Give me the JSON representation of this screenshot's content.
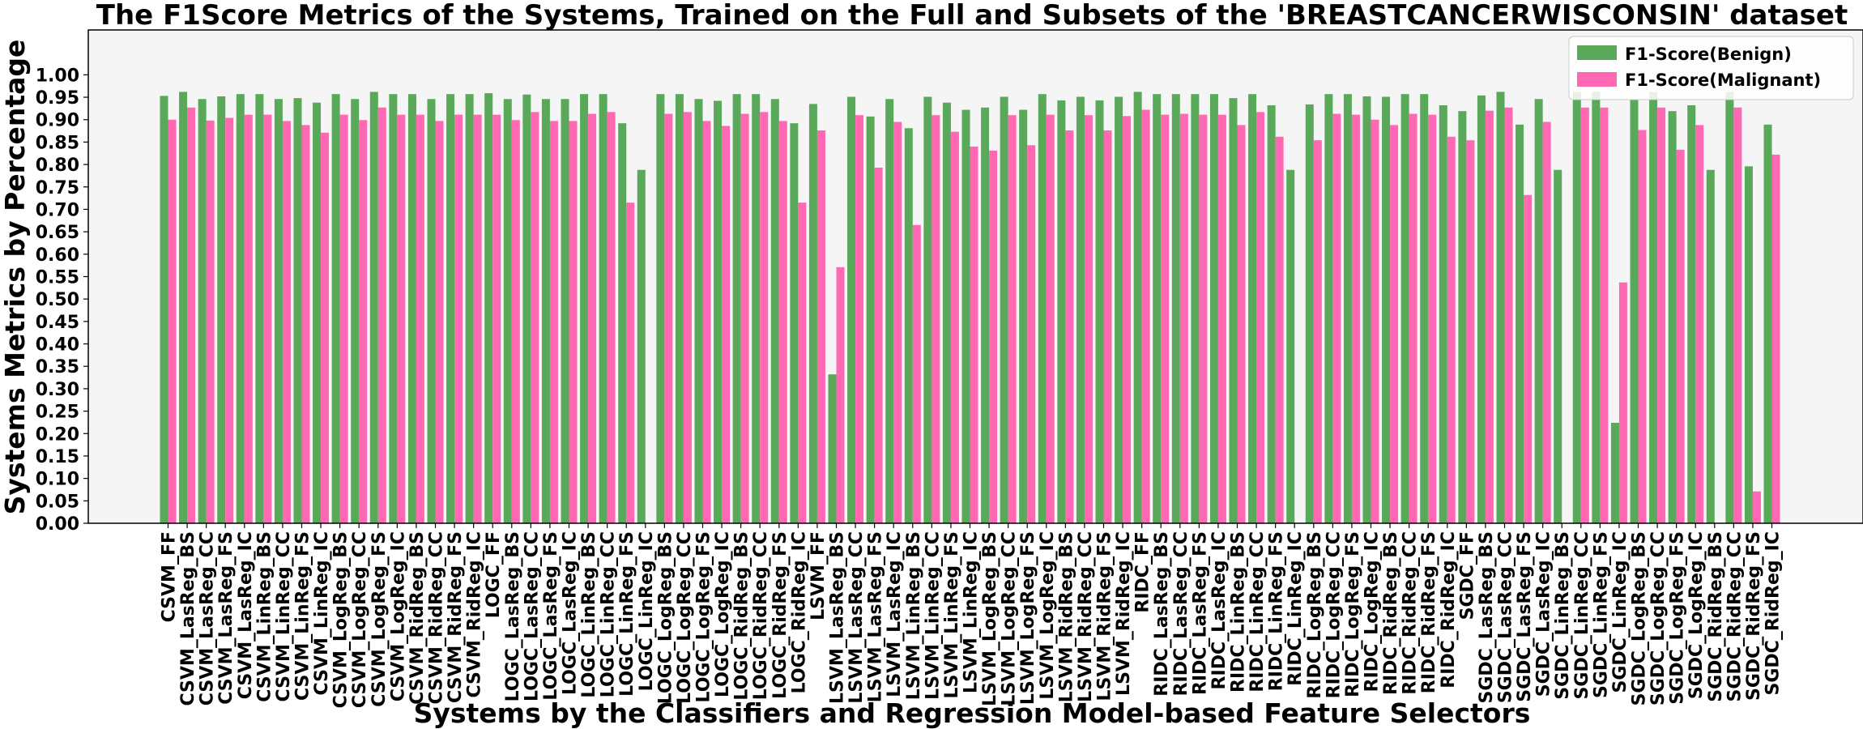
{
  "chart_data": {
    "type": "bar",
    "title": "The F1Score Metrics of the Systems, Trained on the Full and Subsets of the 'BREASTCANCERWISCONSIN' dataset",
    "xlabel": "Systems by the Classifiers and Regression Model-based Feature Selectors",
    "ylabel": "Systems Metrics by Percentage",
    "ylim": [
      0,
      1.1
    ],
    "yticks": [
      "0.00",
      "0.05",
      "0.10",
      "0.15",
      "0.20",
      "0.25",
      "0.30",
      "0.35",
      "0.40",
      "0.45",
      "0.50",
      "0.55",
      "0.60",
      "0.65",
      "0.70",
      "0.75",
      "0.80",
      "0.85",
      "0.90",
      "0.95",
      "1.00"
    ],
    "legend_position": "top-right",
    "grid": false,
    "categories": [
      "CSVM_FF",
      "CSVM_LasReg_BS",
      "CSVM_LasReg_CC",
      "CSVM_LasReg_FS",
      "CSVM_LasReg_IC",
      "CSVM_LinReg_BS",
      "CSVM_LinReg_CC",
      "CSVM_LinReg_FS",
      "CSVM_LinReg_IC",
      "CSVM_LogReg_BS",
      "CSVM_LogReg_CC",
      "CSVM_LogReg_FS",
      "CSVM_LogReg_IC",
      "CSVM_RidReg_BS",
      "CSVM_RidReg_CC",
      "CSVM_RidReg_FS",
      "CSVM_RidReg_IC",
      "LOGC_FF",
      "LOGC_LasReg_BS",
      "LOGC_LasReg_CC",
      "LOGC_LasReg_FS",
      "LOGC_LasReg_IC",
      "LOGC_LinReg_BS",
      "LOGC_LinReg_CC",
      "LOGC_LinReg_FS",
      "LOGC_LinReg_IC",
      "LOGC_LogReg_BS",
      "LOGC_LogReg_CC",
      "LOGC_LogReg_FS",
      "LOGC_LogReg_IC",
      "LOGC_RidReg_BS",
      "LOGC_RidReg_CC",
      "LOGC_RidReg_FS",
      "LOGC_RidReg_IC",
      "LSVM_FF",
      "LSVM_LasReg_BS",
      "LSVM_LasReg_CC",
      "LSVM_LasReg_FS",
      "LSVM_LasReg_IC",
      "LSVM_LinReg_BS",
      "LSVM_LinReg_CC",
      "LSVM_LinReg_FS",
      "LSVM_LinReg_IC",
      "LSVM_LogReg_BS",
      "LSVM_LogReg_CC",
      "LSVM_LogReg_FS",
      "LSVM_LogReg_IC",
      "LSVM_RidReg_BS",
      "LSVM_RidReg_CC",
      "LSVM_RidReg_FS",
      "LSVM_RidReg_IC",
      "RIDC_FF",
      "RIDC_LasReg_BS",
      "RIDC_LasReg_CC",
      "RIDC_LasReg_FS",
      "RIDC_LasReg_IC",
      "RIDC_LinReg_BS",
      "RIDC_LinReg_CC",
      "RIDC_LinReg_FS",
      "RIDC_LinReg_IC",
      "RIDC_LogReg_BS",
      "RIDC_LogReg_CC",
      "RIDC_LogReg_FS",
      "RIDC_LogReg_IC",
      "RIDC_RidReg_BS",
      "RIDC_RidReg_CC",
      "RIDC_RidReg_FS",
      "RIDC_RidReg_IC",
      "SGDC_FF",
      "SGDC_LasReg_BS",
      "SGDC_LasReg_CC",
      "SGDC_LasReg_FS",
      "SGDC_LasReg_IC",
      "SGDC_LinReg_BS",
      "SGDC_LinReg_CC",
      "SGDC_LinReg_FS",
      "SGDC_LinReg_IC",
      "SGDC_LogReg_BS",
      "SGDC_LogReg_CC",
      "SGDC_LogReg_FS",
      "SGDC_LogReg_IC",
      "SGDC_RidReg_BS",
      "SGDC_RidReg_CC",
      "SGDC_RidReg_FS",
      "SGDC_RidReg_IC"
    ],
    "series": [
      {
        "name": "F1-Score(Benign)",
        "color": "#5aa85a",
        "values": [
          0.953,
          0.962,
          0.946,
          0.952,
          0.957,
          0.957,
          0.946,
          0.948,
          0.938,
          0.957,
          0.946,
          0.962,
          0.957,
          0.957,
          0.946,
          0.957,
          0.957,
          0.959,
          0.946,
          0.956,
          0.946,
          0.946,
          0.957,
          0.957,
          0.892,
          0.788,
          0.957,
          0.957,
          0.946,
          0.942,
          0.957,
          0.957,
          0.946,
          0.892,
          0.935,
          0.332,
          0.951,
          0.907,
          0.946,
          0.881,
          0.951,
          0.938,
          0.922,
          0.927,
          0.951,
          0.922,
          0.957,
          0.943,
          0.951,
          0.943,
          0.951,
          0.962,
          0.957,
          0.957,
          0.957,
          0.957,
          0.948,
          0.957,
          0.932,
          0.788,
          0.934,
          0.957,
          0.957,
          0.952,
          0.951,
          0.957,
          0.957,
          0.932,
          0.919,
          0.954,
          0.962,
          0.889,
          0.946,
          0.788,
          0.962,
          0.962,
          0.224,
          0.944,
          0.962,
          0.919,
          0.932,
          0.788,
          0.962,
          0.796,
          0.889
        ]
      },
      {
        "name": "F1-Score(Malignant)",
        "color": "#ff69b4",
        "values": [
          0.9,
          0.927,
          0.898,
          0.904,
          0.911,
          0.911,
          0.897,
          0.888,
          0.871,
          0.911,
          0.899,
          0.927,
          0.911,
          0.911,
          0.897,
          0.911,
          0.911,
          0.911,
          0.899,
          0.917,
          0.897,
          0.897,
          0.913,
          0.917,
          0.715,
          null,
          0.913,
          0.917,
          0.897,
          0.886,
          0.913,
          0.917,
          0.897,
          0.715,
          0.876,
          0.571,
          0.91,
          0.793,
          0.895,
          0.665,
          0.91,
          0.873,
          0.84,
          0.831,
          0.91,
          0.843,
          0.911,
          0.876,
          0.91,
          0.876,
          0.908,
          0.922,
          0.911,
          0.913,
          0.911,
          0.911,
          0.888,
          0.917,
          0.862,
          null,
          0.854,
          0.913,
          0.911,
          0.9,
          0.888,
          0.913,
          0.911,
          0.862,
          0.854,
          0.92,
          0.927,
          0.732,
          0.895,
          null,
          0.927,
          0.927,
          0.537,
          0.877,
          0.927,
          0.833,
          0.888,
          null,
          0.927,
          0.071,
          0.822
        ]
      }
    ]
  }
}
